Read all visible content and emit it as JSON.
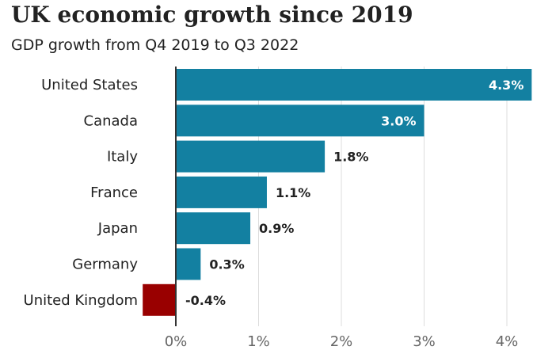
{
  "chart_data": {
    "type": "bar",
    "orientation": "horizontal",
    "title": "UK economic growth since 2019",
    "subtitle": "GDP growth from Q4 2019 to Q3 2022",
    "categories": [
      "United States",
      "Canada",
      "Italy",
      "France",
      "Japan",
      "Germany",
      "United Kingdom"
    ],
    "values": [
      4.3,
      3.0,
      1.8,
      1.1,
      0.9,
      0.3,
      -0.4
    ],
    "value_labels": [
      "4.3%",
      "3.0%",
      "1.8%",
      "1.1%",
      "0.9%",
      "0.3%",
      "-0.4%"
    ],
    "xticks": [
      0,
      1,
      2,
      3,
      4
    ],
    "xtick_labels": [
      "0%",
      "1%",
      "2%",
      "3%",
      "4%"
    ],
    "xlim": [
      -0.4,
      4.3
    ],
    "grid": true,
    "colors": {
      "positive": "#1380a1",
      "negative": "#990000",
      "zero_line": "#333333",
      "grid": "#dddddd"
    }
  }
}
